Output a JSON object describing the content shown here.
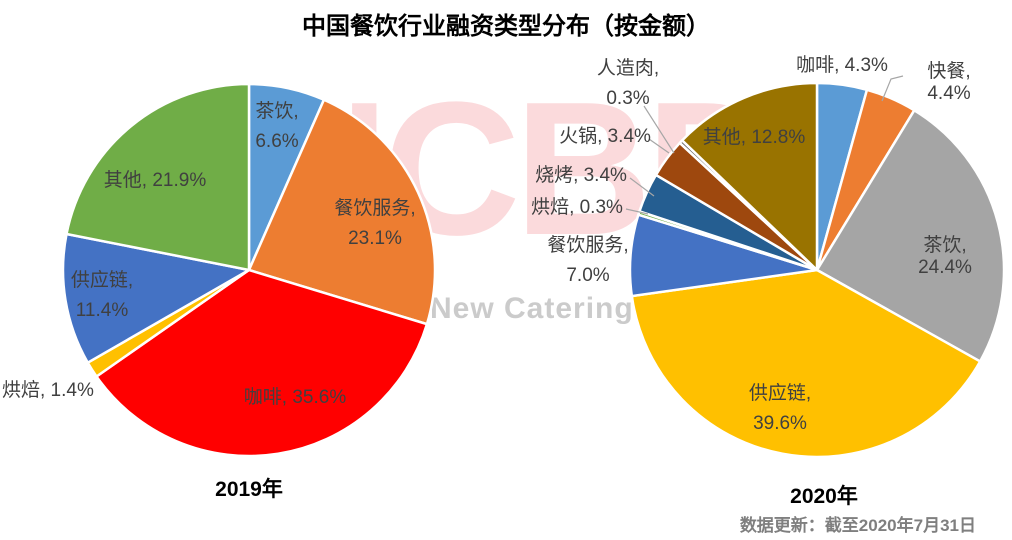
{
  "title": "中国餐饮行业融资类型分布（按金额）",
  "watermark": {
    "logo": "NCBD",
    "subtext": "New Catering B",
    "logo_color": "#FBDADC",
    "subtext_color": "#CBCBCB"
  },
  "footer": {
    "update_note": "数据更新：截至2020年7月31日"
  },
  "label_color": "#404040",
  "leader_line_color": "#A6A6A6",
  "chart_data": [
    {
      "type": "pie",
      "title": "2019年",
      "unit": "%",
      "legend_position": "none",
      "label_style": "category-name-with-percent",
      "slices": [
        {
          "name": "茶饮",
          "value": 6.6,
          "pct_label": "6.6%",
          "color": "#5B9BD5"
        },
        {
          "name": "餐饮服务",
          "value": 23.1,
          "pct_label": "23.1%",
          "color": "#ED7D31"
        },
        {
          "name": "咖啡",
          "value": 35.6,
          "pct_label": "35.6%",
          "color": "#FF0000"
        },
        {
          "name": "烘焙",
          "value": 1.4,
          "pct_label": "1.4%",
          "color": "#FFC000"
        },
        {
          "name": "供应链",
          "value": 11.4,
          "pct_label": "11.4%",
          "color": "#4472C4"
        },
        {
          "name": "其他",
          "value": 21.9,
          "pct_label": "21.9%",
          "color": "#70AD47"
        }
      ]
    },
    {
      "type": "pie",
      "title": "2020年",
      "unit": "%",
      "legend_position": "none",
      "label_style": "category-name-with-percent",
      "slices": [
        {
          "name": "咖啡",
          "value": 4.3,
          "pct_label": "4.3%",
          "color": "#5B9BD5"
        },
        {
          "name": "快餐",
          "value": 4.4,
          "pct_label": "4.4%",
          "color": "#ED7D31"
        },
        {
          "name": "茶饮",
          "value": 24.4,
          "pct_label": "24.4%",
          "color": "#A5A5A5"
        },
        {
          "name": "供应链",
          "value": 39.6,
          "pct_label": "39.6%",
          "color": "#FFC000"
        },
        {
          "name": "餐饮服务",
          "value": 7.0,
          "pct_label": "7.0%",
          "color": "#4472C4"
        },
        {
          "name": "烘焙",
          "value": 0.3,
          "pct_label": "0.3%",
          "color": "#70AD47"
        },
        {
          "name": "烧烤",
          "value": 3.4,
          "pct_label": "3.4%",
          "color": "#255E91"
        },
        {
          "name": "火锅",
          "value": 3.4,
          "pct_label": "3.4%",
          "color": "#9E480E"
        },
        {
          "name": "人造肉",
          "value": 0.3,
          "pct_label": "0.3%",
          "color": "#636363"
        },
        {
          "name": "其他",
          "value": 12.8,
          "pct_label": "12.8%",
          "color": "#997300"
        }
      ]
    }
  ]
}
